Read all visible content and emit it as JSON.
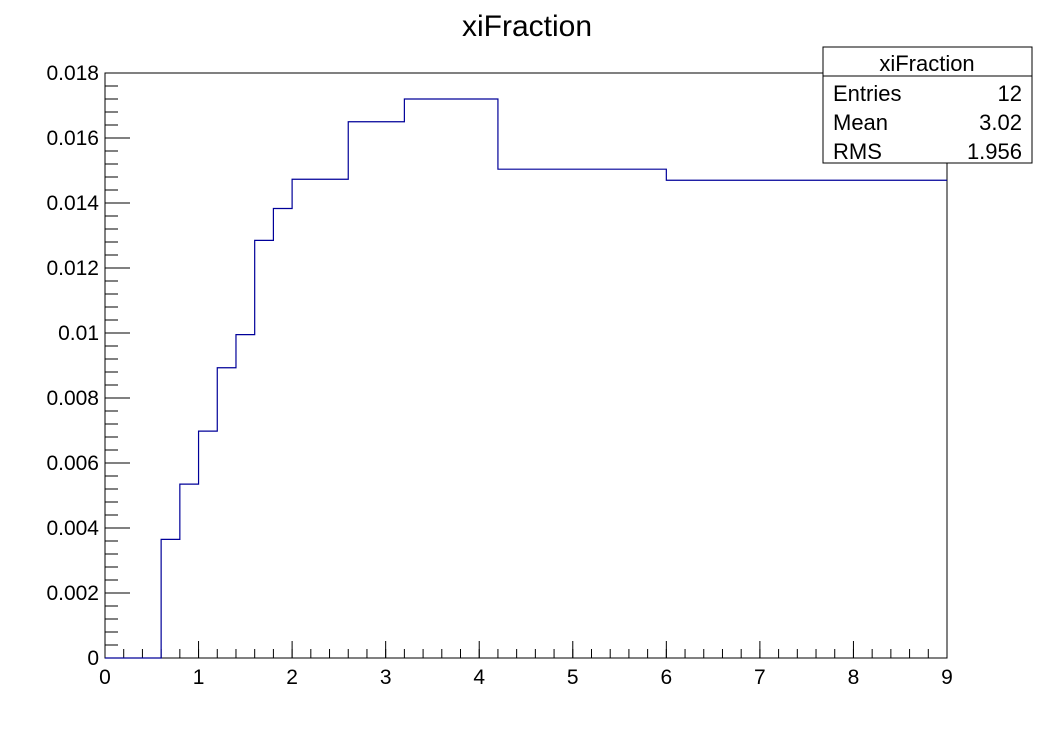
{
  "chart_data": {
    "type": "histogram",
    "title": "xiFraction",
    "xlabel": "",
    "ylabel": "",
    "xlim": [
      0,
      9
    ],
    "ylim": [
      0,
      0.018
    ],
    "grid": false,
    "line_color": "#000099",
    "bin_edges": [
      0,
      0.6,
      0.8,
      1.0,
      1.2,
      1.4,
      1.6,
      1.8,
      2.0,
      2.6,
      3.2,
      4.2,
      6.0,
      9.0
    ],
    "values": [
      0,
      0.00365,
      0.00535,
      0.00698,
      0.00893,
      0.00995,
      0.01285,
      0.01383,
      0.01473,
      0.0165,
      0.0172,
      0.01504,
      0.0147
    ],
    "x_ticks": [
      {
        "value": 0,
        "label": "0"
      },
      {
        "value": 1,
        "label": "1"
      },
      {
        "value": 2,
        "label": "2"
      },
      {
        "value": 3,
        "label": "3"
      },
      {
        "value": 4,
        "label": "4"
      },
      {
        "value": 5,
        "label": "5"
      },
      {
        "value": 6,
        "label": "6"
      },
      {
        "value": 7,
        "label": "7"
      },
      {
        "value": 8,
        "label": "8"
      },
      {
        "value": 9,
        "label": "9"
      }
    ],
    "y_ticks": [
      {
        "value": 0,
        "label": "0"
      },
      {
        "value": 0.002,
        "label": "0.002"
      },
      {
        "value": 0.004,
        "label": "0.004"
      },
      {
        "value": 0.006,
        "label": "0.006"
      },
      {
        "value": 0.008,
        "label": "0.008"
      },
      {
        "value": 0.01,
        "label": "0.01"
      },
      {
        "value": 0.012,
        "label": "0.012"
      },
      {
        "value": 0.014,
        "label": "0.014"
      },
      {
        "value": 0.016,
        "label": "0.016"
      },
      {
        "value": 0.018,
        "label": "0.018"
      }
    ],
    "x_minor_step": 0.2,
    "y_minor_step": 0.0004,
    "stats_box": {
      "title": "xiFraction",
      "placement": "top-right",
      "rows": [
        {
          "label": "Entries",
          "value": "12"
        },
        {
          "label": "Mean",
          "value": "3.02"
        },
        {
          "label": "RMS",
          "value": "1.956"
        }
      ]
    }
  }
}
